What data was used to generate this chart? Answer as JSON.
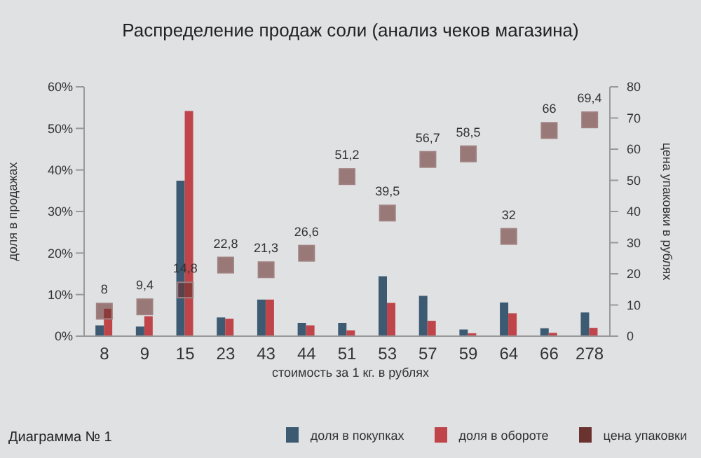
{
  "chart_data": {
    "type": "bar",
    "title": "Распределение продаж соли (анализ чеков магазина)",
    "xlabel": "стоимость за 1 кг. в рублях",
    "ylabel": "доля в продажах",
    "y2label": "цена упаковки в рублях",
    "annotations": [
      "Диаграмма № 1"
    ],
    "categories": [
      "8",
      "9",
      "15",
      "23",
      "43",
      "44",
      "51",
      "53",
      "57",
      "59",
      "64",
      "66",
      "278"
    ],
    "series": [
      {
        "name": "доля в покупках",
        "color": "#3d5a73",
        "values": [
          2.6,
          2.3,
          37.4,
          4.5,
          8.8,
          3.2,
          3.2,
          14.4,
          9.7,
          1.6,
          8.1,
          1.9,
          5.7
        ]
      },
      {
        "name": "доля в обороте",
        "color": "#c0454a",
        "values": [
          6.6,
          4.8,
          54.2,
          4.2,
          8.8,
          2.6,
          1.4,
          8,
          3.7,
          0.7,
          5.5,
          0.8,
          2.0
        ]
      },
      {
        "name": "цена упаковки",
        "type": "scatter",
        "axis": "y2",
        "color": "#6b3330",
        "values": [
          8,
          9.4,
          14.8,
          22.8,
          21.3,
          26.6,
          51.2,
          39.5,
          56.7,
          58.5,
          32,
          66,
          69.4
        ],
        "value_labels": [
          "8",
          "9,4",
          "14,8",
          "22,8",
          "21,3",
          "26,6",
          "51,2",
          "39,5",
          "56,7",
          "58,5",
          "32",
          "66",
          "69,4"
        ]
      }
    ],
    "ylim": [
      0,
      60
    ],
    "yticks": [
      {
        "value": 0,
        "label": "0%"
      },
      {
        "value": 10,
        "label": "10%"
      },
      {
        "value": 20,
        "label": "20%"
      },
      {
        "value": 30,
        "label": "30%"
      },
      {
        "value": 40,
        "label": "40%"
      },
      {
        "value": 50,
        "label": "50%"
      },
      {
        "value": 60,
        "label": "60%"
      }
    ],
    "y2lim": [
      0,
      80
    ],
    "y2ticks": [
      0,
      10,
      20,
      30,
      40,
      50,
      60,
      70,
      80
    ],
    "marker": "square",
    "grid": false,
    "legend": "bottom right"
  }
}
